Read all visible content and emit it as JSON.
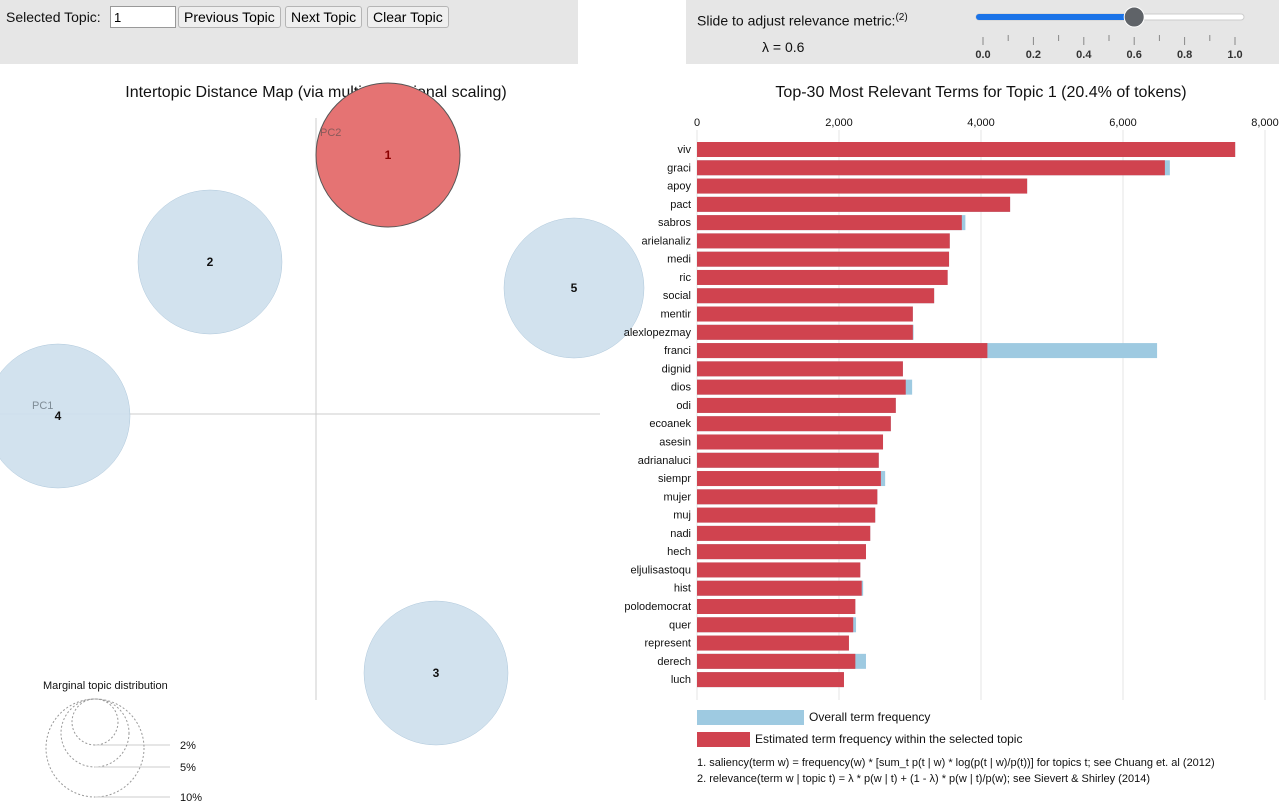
{
  "controls": {
    "selected_topic_label": "Selected Topic:",
    "selected_topic_value": "1",
    "previous_label": "Previous Topic",
    "next_label": "Next Topic",
    "clear_label": "Clear Topic",
    "slider_label": "Slide to adjust relevance metric:",
    "slider_sup": "(2)",
    "lambda_text": "λ = 0.6",
    "lambda": 0.6,
    "slider_ticks": [
      "0.0",
      "0.2",
      "0.4",
      "0.6",
      "0.8",
      "1.0"
    ],
    "accent_color": "#1a73e8"
  },
  "map": {
    "title": "Intertopic Distance Map (via multidimensional scaling)",
    "pc1": "PC1",
    "pc2": "PC2",
    "topics": [
      "1",
      "2",
      "3",
      "4",
      "5"
    ],
    "selected_topic": "1",
    "selected_color": "#e57373",
    "topic_color": "#d0e1ee",
    "legend_title": "Marginal topic distribution",
    "legend_sizes": [
      "2%",
      "5%",
      "10%"
    ]
  },
  "chart_data": {
    "type": "bar",
    "orientation": "horizontal",
    "title": "Top-30 Most Relevant Terms for Topic 1 (20.4% of tokens)",
    "xlim": [
      0,
      8000
    ],
    "x_ticks": [
      "0",
      "2,000",
      "4,000",
      "6,000",
      "8,000"
    ],
    "categories": [
      "viv",
      "graci",
      "apoy",
      "pact",
      "sabros",
      "arielanaliz",
      "medi",
      "ric",
      "social",
      "mentir",
      "alexlopezmay",
      "franci",
      "dignid",
      "dios",
      "odi",
      "ecoanek",
      "asesin",
      "adrianaluci",
      "siempr",
      "mujer",
      "muj",
      "nadi",
      "hech",
      "eljulisastoqu",
      "hist",
      "polodemocrat",
      "quer",
      "represent",
      "derech",
      "luch"
    ],
    "series": [
      {
        "name": "Overall term frequency",
        "color": "#9ecae1",
        "values": [
          7580,
          6660,
          4650,
          4410,
          3780,
          3560,
          3550,
          3530,
          3340,
          3040,
          3050,
          6480,
          2900,
          3030,
          2800,
          2730,
          2620,
          2560,
          2650,
          2540,
          2510,
          2440,
          2380,
          2300,
          2340,
          2230,
          2240,
          2140,
          2380,
          2070
        ]
      },
      {
        "name": "Estimated term frequency within the selected topic",
        "color": "#d0434f",
        "values": [
          7580,
          6590,
          4650,
          4410,
          3730,
          3560,
          3550,
          3530,
          3340,
          3040,
          3040,
          4090,
          2900,
          2940,
          2800,
          2730,
          2620,
          2560,
          2590,
          2540,
          2510,
          2440,
          2380,
          2300,
          2320,
          2230,
          2200,
          2140,
          2230,
          2070
        ]
      }
    ],
    "footnotes": [
      "1. saliency(term w) = frequency(w) * [sum_t p(t | w) * log(p(t | w)/p(t))] for topics t; see Chuang et. al (2012)",
      "2. relevance(term w | topic t) = λ * p(w | t) + (1 - λ) * p(w | t)/p(w); see Sievert & Shirley (2014)"
    ]
  }
}
